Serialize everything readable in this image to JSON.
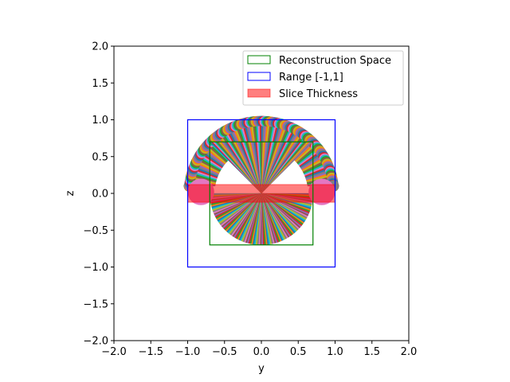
{
  "chart_data": {
    "type": "projection-geometry",
    "xlabel": "y",
    "ylabel": "z",
    "xlim": [
      -2.0,
      2.0
    ],
    "ylim": [
      -2.0,
      2.0
    ],
    "xticks": [
      "−2.0",
      "−1.5",
      "−1.0",
      "−0.5",
      "0.0",
      "0.5",
      "1.0",
      "1.5",
      "2.0"
    ],
    "yticks": [
      "−2.0",
      "−1.5",
      "−1.0",
      "−0.5",
      "0.0",
      "0.5",
      "1.0",
      "1.5",
      "2.0"
    ],
    "grid": false,
    "legend_position": "top-right",
    "legend": [
      {
        "label": "Reconstruction Space",
        "style": "outline",
        "color": "#008000"
      },
      {
        "label": "Range [-1,1]",
        "style": "outline",
        "color": "#0000ff"
      },
      {
        "label": "Slice Thickness",
        "style": "fill",
        "color": "#ff0000",
        "alpha": 0.5
      }
    ],
    "reconstruction_space": {
      "y": [
        -0.7,
        0.7
      ],
      "z": [
        -0.7,
        0.7
      ]
    },
    "range_box": {
      "y": [
        -1.0,
        1.0
      ],
      "z": [
        -1.0,
        1.0
      ]
    },
    "slice_thickness": {
      "y": [
        -1.0,
        1.0
      ],
      "z": [
        -0.12,
        0.12
      ]
    },
    "fan": {
      "center": [
        0.0,
        0.0
      ],
      "radius": 0.7,
      "outer_radius": 1.02,
      "lobe_center_z": 0.1,
      "colors": [
        "#1f77b4",
        "#ff7f0e",
        "#2ca02c",
        "#d62728",
        "#9467bd",
        "#8c564b",
        "#e377c2",
        "#7f7f7f",
        "#bcbd22",
        "#17becf"
      ]
    }
  }
}
